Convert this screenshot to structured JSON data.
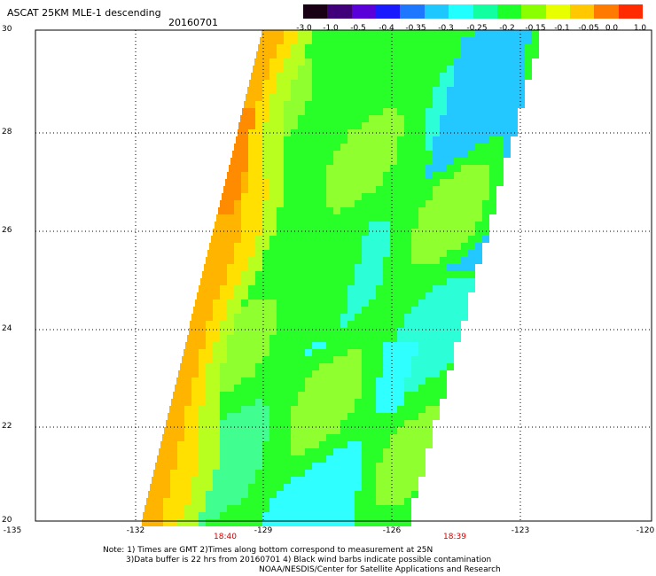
{
  "title": "ASCAT 25KM MLE-1 descending",
  "date": "20160701",
  "colorbar": {
    "labels": [
      "-3.0",
      "-1.0",
      "-0.5",
      "-0.4",
      "-0.35",
      "-0.3",
      "-0.25",
      "-0.2",
      "-0.15",
      "-0.1",
      "-0.05",
      "0.0",
      "1.0"
    ],
    "colors": [
      "#1a0014",
      "#40007a",
      "#5a00d8",
      "#1a1aff",
      "#1e78ff",
      "#1ec8ff",
      "#22ffff",
      "#11ffa0",
      "#1cff28",
      "#8aff00",
      "#e8ff00",
      "#ffc800",
      "#ff7a00",
      "#ff2a00"
    ]
  },
  "axes": {
    "lat_labels": [
      "30",
      "28",
      "26",
      "24",
      "22",
      "20"
    ],
    "lon_labels": [
      "-135",
      "-132",
      "-129",
      "-126",
      "-123",
      "-120"
    ]
  },
  "time_labels": [
    "18:40",
    "18:39"
  ],
  "notes": {
    "line1": "Note: 1) Times are GMT 2)Times along bottom correspond to measurement at 25N",
    "line2": "3)Data buffer is 22 hrs from 20160701 4) Black wind barbs indicate possible contamination",
    "line3": "NOAA/NESDIS/Center for Satellite Applications and Research"
  }
}
